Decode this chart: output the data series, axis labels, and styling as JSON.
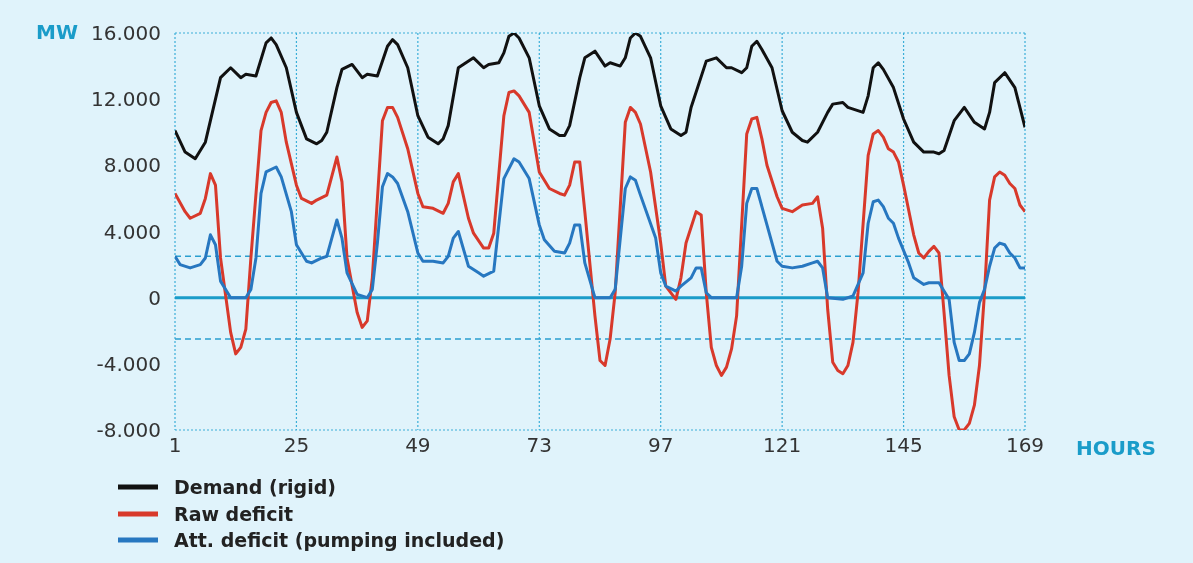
{
  "chart_data": {
    "type": "line",
    "xlabel": "HOURS",
    "ylabel": "MW",
    "xlim": [
      1,
      169
    ],
    "xticks": [
      1,
      25,
      49,
      73,
      97,
      121,
      145,
      169
    ],
    "ylim": [
      -8000,
      16000
    ],
    "yticks": [
      {
        "value": -8000,
        "label": "-8.000"
      },
      {
        "value": -4000,
        "label": "-4.000"
      },
      {
        "value": 0,
        "label": "0"
      },
      {
        "value": 4000,
        "label": "4.000"
      },
      {
        "value": 8000,
        "label": "8.000"
      },
      {
        "value": 12000,
        "label": "12.000"
      },
      {
        "value": 16000,
        "label": "16.000"
      }
    ],
    "grid": true,
    "legend": "bottom",
    "marker": "none",
    "line_style": "solid",
    "ref_lines": [
      {
        "axis": "y",
        "value": 0,
        "label": null,
        "color": "#1a9cc9",
        "line_style": "solid"
      },
      {
        "axis": "y",
        "value": 2500,
        "label": null,
        "color": "#2a9fd0",
        "line_style": "dashed"
      },
      {
        "axis": "y",
        "value": -2500,
        "label": null,
        "color": "#2a9fd0",
        "line_style": "dashed"
      }
    ],
    "series": [
      {
        "name": "Demand (rigid)",
        "color": "#111111",
        "x": [
          1,
          3,
          5,
          7,
          10,
          12,
          14,
          15,
          17,
          19,
          20,
          21,
          23,
          25,
          27,
          29,
          30,
          31,
          33,
          34,
          36,
          38,
          39,
          41,
          43,
          44,
          45,
          47,
          49,
          51,
          53,
          54,
          55,
          57,
          60,
          62,
          63,
          65,
          66,
          67,
          68,
          69,
          71,
          73,
          75,
          77,
          78,
          79,
          81,
          82,
          84,
          86,
          87,
          89,
          90,
          91,
          92,
          93,
          95,
          97,
          99,
          101,
          102,
          103,
          106,
          108,
          110,
          111,
          113,
          114,
          115,
          116,
          117,
          119,
          121,
          123,
          125,
          126,
          128,
          130,
          131,
          133,
          134,
          137,
          138,
          139,
          140,
          141,
          143,
          145,
          147,
          149,
          151,
          152,
          153,
          155,
          157,
          159,
          161,
          162,
          163,
          165,
          167,
          169
        ],
        "values": [
          10100,
          8800,
          8400,
          9400,
          13300,
          13900,
          13300,
          13500,
          13400,
          15400,
          15700,
          15300,
          13900,
          11200,
          9600,
          9300,
          9500,
          10000,
          12700,
          13800,
          14100,
          13300,
          13500,
          13400,
          15200,
          15600,
          15300,
          13900,
          11000,
          9700,
          9300,
          9600,
          10400,
          13900,
          14500,
          13900,
          14100,
          14200,
          14800,
          15800,
          16000,
          15700,
          14500,
          11600,
          10200,
          9800,
          9800,
          10400,
          13300,
          14500,
          14900,
          14000,
          14200,
          14000,
          14500,
          15700,
          16000,
          15800,
          14500,
          11600,
          10200,
          9800,
          10000,
          11500,
          14300,
          14500,
          13900,
          13900,
          13600,
          13900,
          15200,
          15500,
          15000,
          13900,
          11300,
          10000,
          9500,
          9400,
          10000,
          11200,
          11700,
          11800,
          11500,
          11200,
          12200,
          13900,
          14200,
          13800,
          12700,
          10800,
          9400,
          8800,
          8800,
          8700,
          8900,
          10700,
          11500,
          10600,
          10200,
          11200,
          13000,
          13600,
          12700,
          10300
        ]
      },
      {
        "name": "Raw deficit",
        "color": "#d8392b",
        "x": [
          1,
          3,
          4,
          6,
          7,
          8,
          9,
          10,
          12,
          13,
          14,
          15,
          16,
          18,
          19,
          20,
          21,
          22,
          23,
          25,
          26,
          28,
          29,
          31,
          33,
          34,
          35,
          37,
          38,
          39,
          40,
          42,
          43,
          44,
          45,
          47,
          49,
          50,
          52,
          54,
          55,
          56,
          57,
          59,
          60,
          62,
          63,
          64,
          66,
          67,
          68,
          69,
          71,
          73,
          75,
          77,
          78,
          79,
          80,
          81,
          82,
          84,
          85,
          86,
          87,
          88,
          90,
          91,
          92,
          93,
          95,
          97,
          98,
          100,
          101,
          102,
          104,
          105,
          106,
          107,
          108,
          109,
          110,
          111,
          112,
          114,
          115,
          116,
          117,
          118,
          120,
          121,
          123,
          125,
          127,
          128,
          129,
          130,
          131,
          132,
          133,
          134,
          135,
          136,
          138,
          139,
          140,
          141,
          142,
          143,
          144,
          145,
          147,
          148,
          149,
          150,
          151,
          152,
          153,
          154,
          155,
          156,
          157,
          158,
          159,
          160,
          161,
          162,
          163,
          164,
          165,
          166,
          167,
          168,
          169
        ],
        "values": [
          6300,
          5200,
          4800,
          5100,
          6000,
          7500,
          6800,
          2400,
          -2100,
          -3400,
          -3000,
          -1900,
          2400,
          10100,
          11200,
          11800,
          11900,
          11200,
          9400,
          6800,
          6000,
          5700,
          5900,
          6200,
          8500,
          7000,
          2400,
          -900,
          -1800,
          -1400,
          1200,
          10700,
          11500,
          11500,
          10900,
          9000,
          6300,
          5500,
          5400,
          5100,
          5700,
          7000,
          7500,
          4800,
          3900,
          3000,
          3000,
          3900,
          11000,
          12400,
          12500,
          12200,
          11200,
          7600,
          6600,
          6300,
          6200,
          6800,
          8200,
          8200,
          5200,
          -1100,
          -3800,
          -4100,
          -2500,
          300,
          10600,
          11500,
          11200,
          10500,
          7600,
          3300,
          700,
          -100,
          1200,
          3300,
          5200,
          5000,
          300,
          -3000,
          -4100,
          -4700,
          -4200,
          -3100,
          -1100,
          9900,
          10800,
          10900,
          9600,
          8000,
          6100,
          5400,
          5200,
          5600,
          5700,
          6100,
          4200,
          -700,
          -3900,
          -4400,
          -4600,
          -4100,
          -2700,
          300,
          8600,
          9900,
          10100,
          9700,
          9000,
          8800,
          8200,
          6800,
          3800,
          2700,
          2400,
          2800,
          3100,
          2700,
          -900,
          -4700,
          -7200,
          -8000,
          -8000,
          -7600,
          -6500,
          -4100,
          300,
          5900,
          7300,
          7600,
          7400,
          6900,
          6600,
          5600,
          5200
        ]
      },
      {
        "name": "Att. deficit (pumping included)",
        "color": "#2777c0",
        "x": [
          1,
          2,
          4,
          6,
          7,
          8,
          9,
          10,
          12,
          15,
          16,
          17,
          18,
          19,
          21,
          22,
          24,
          25,
          27,
          28,
          30,
          31,
          33,
          34,
          35,
          37,
          39,
          40,
          41,
          42,
          43,
          44,
          45,
          47,
          49,
          50,
          52,
          54,
          55,
          56,
          57,
          59,
          61,
          62,
          64,
          66,
          68,
          69,
          71,
          73,
          74,
          76,
          78,
          79,
          80,
          81,
          82,
          84,
          87,
          88,
          90,
          91,
          92,
          93,
          96,
          97,
          98,
          100,
          101,
          103,
          104,
          105,
          106,
          107,
          112,
          113,
          114,
          115,
          116,
          118,
          120,
          121,
          123,
          125,
          127,
          128,
          129,
          130,
          133,
          135,
          137,
          138,
          139,
          140,
          141,
          142,
          143,
          144,
          146,
          147,
          149,
          150,
          152,
          153,
          154,
          155,
          156,
          157,
          158,
          159,
          160,
          161,
          162,
          163,
          164,
          165,
          166,
          167,
          168,
          169
        ],
        "values": [
          2500,
          2000,
          1800,
          2000,
          2400,
          3800,
          3200,
          1000,
          0,
          0,
          500,
          2400,
          6300,
          7600,
          7900,
          7300,
          5200,
          3200,
          2200,
          2100,
          2400,
          2500,
          4700,
          3600,
          1500,
          200,
          0,
          500,
          3300,
          6700,
          7500,
          7300,
          6900,
          5200,
          2700,
          2200,
          2200,
          2100,
          2500,
          3600,
          4000,
          1900,
          1500,
          1300,
          1600,
          7200,
          8400,
          8200,
          7200,
          4400,
          3500,
          2800,
          2700,
          3300,
          4400,
          4400,
          2100,
          0,
          0,
          500,
          6600,
          7300,
          7100,
          6200,
          3600,
          1500,
          700,
          400,
          700,
          1200,
          1800,
          1800,
          300,
          0,
          0,
          1900,
          5700,
          6600,
          6600,
          4400,
          2200,
          1900,
          1800,
          1900,
          2100,
          2200,
          1800,
          0,
          -100,
          100,
          1500,
          4500,
          5800,
          5900,
          5500,
          4800,
          4500,
          3600,
          2100,
          1200,
          800,
          900,
          900,
          400,
          -100,
          -2700,
          -3800,
          -3800,
          -3400,
          -2100,
          -300,
          500,
          1900,
          3000,
          3300,
          3200,
          2700,
          2400,
          1800,
          1800
        ]
      }
    ]
  }
}
